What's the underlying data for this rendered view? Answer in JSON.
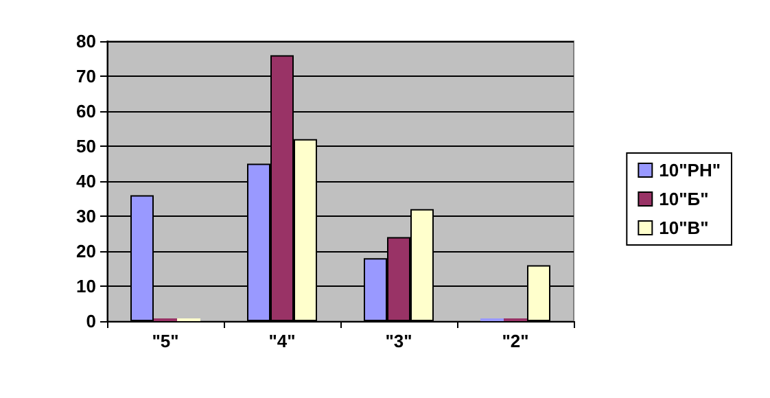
{
  "chart_data": {
    "type": "bar",
    "categories": [
      "\"5\"",
      "\"4\"",
      "\"3\"",
      "\"2\""
    ],
    "series": [
      {
        "name": "10\"РН\"",
        "color": "#9999ff",
        "values": [
          36,
          45,
          18,
          0
        ]
      },
      {
        "name": "10\"Б\"",
        "color": "#993366",
        "values": [
          0,
          76,
          24,
          0
        ]
      },
      {
        "name": "10\"В\"",
        "color": "#ffffcc",
        "values": [
          0,
          52,
          32,
          16
        ]
      }
    ],
    "ylim": [
      0,
      80
    ],
    "yticks": [
      0,
      10,
      20,
      30,
      40,
      50,
      60,
      70,
      80
    ],
    "grid": "y",
    "legend": "right"
  }
}
